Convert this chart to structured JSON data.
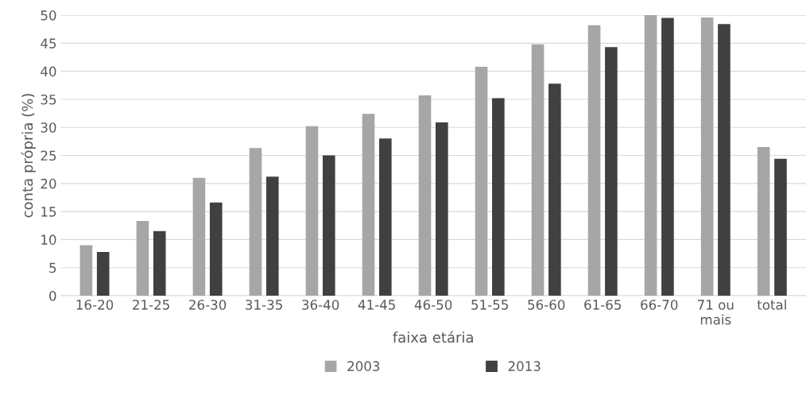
{
  "chart_data": {
    "type": "bar",
    "xlabel": "faixa etária",
    "ylabel": "conta própria (%)",
    "categories": [
      "16-20",
      "21-25",
      "26-30",
      "31-35",
      "36-40",
      "41-45",
      "46-50",
      "51-55",
      "56-60",
      "61-65",
      "66-70",
      "71 ou\nmais",
      "total"
    ],
    "series": [
      {
        "name": "2003",
        "color": "#a6a6a6",
        "values": [
          9.0,
          13.3,
          21.0,
          26.3,
          30.2,
          32.4,
          35.7,
          40.8,
          44.8,
          48.2,
          50.0,
          49.6,
          26.5
        ]
      },
      {
        "name": "2013",
        "color": "#404040",
        "values": [
          7.8,
          11.5,
          16.6,
          21.2,
          25.0,
          28.0,
          30.9,
          35.2,
          37.8,
          44.3,
          49.5,
          48.4,
          24.4
        ]
      }
    ],
    "ylim": [
      0,
      50
    ],
    "yticks": [
      0,
      5,
      10,
      15,
      20,
      25,
      30,
      35,
      40,
      45,
      50
    ],
    "grid": "y",
    "legend": "bottom"
  }
}
